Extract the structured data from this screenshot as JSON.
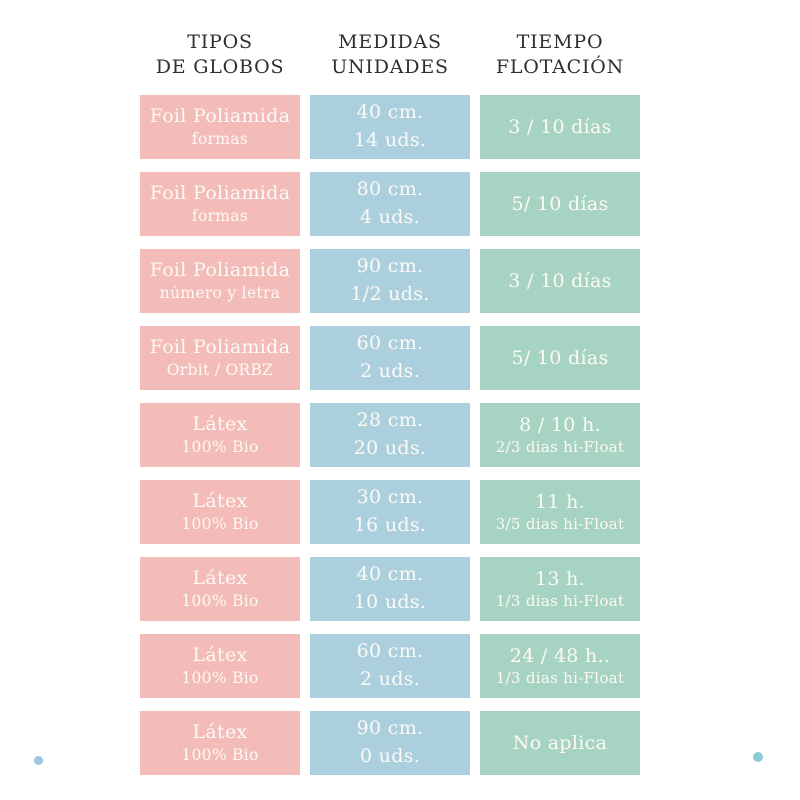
{
  "colors": {
    "pink": "#f3bcb8",
    "blue": "#accfde",
    "green": "#a7d3c3",
    "header_text": "#2f2f2f",
    "cell_text": "#fdf9f5",
    "dot_left": "#9cc7de",
    "dot_right": "#87ced6",
    "background": "#ffffff"
  },
  "chart_data": {
    "type": "table",
    "title": "",
    "columns": [
      {
        "line1": "TIPOS",
        "line2": "DE GLOBOS"
      },
      {
        "line1": "MEDIDAS",
        "line2": "UNIDADES"
      },
      {
        "line1": "TIEMPO",
        "line2": "FLOTACIÓN"
      }
    ],
    "rows": [
      {
        "tipo": "Foil Poliamida",
        "tipo_sub": "formas",
        "medida": "40 cm.",
        "unidades": "14 uds.",
        "flotacion": "3 / 10 días",
        "flotacion_sub": ""
      },
      {
        "tipo": "Foil Poliamida",
        "tipo_sub": "formas",
        "medida": "80 cm.",
        "unidades": "4 uds.",
        "flotacion": "5/ 10 días",
        "flotacion_sub": ""
      },
      {
        "tipo": "Foil Poliamida",
        "tipo_sub": "número y letra",
        "medida": "90 cm.",
        "unidades": "1/2 uds.",
        "flotacion": "3 / 10 días",
        "flotacion_sub": ""
      },
      {
        "tipo": "Foil Poliamida",
        "tipo_sub": "Orbit / ORBZ",
        "medida": "60 cm.",
        "unidades": "2 uds.",
        "flotacion": "5/ 10 días",
        "flotacion_sub": ""
      },
      {
        "tipo": "Látex",
        "tipo_sub": "100% Bio",
        "medida": "28 cm.",
        "unidades": "20 uds.",
        "flotacion": "8 / 10 h.",
        "flotacion_sub": "2/3 dias hi-Float"
      },
      {
        "tipo": "Látex",
        "tipo_sub": "100% Bio",
        "medida": "30 cm.",
        "unidades": "16 uds.",
        "flotacion": "11 h.",
        "flotacion_sub": "3/5 dias hi-Float"
      },
      {
        "tipo": "Látex",
        "tipo_sub": "100% Bio",
        "medida": "40 cm.",
        "unidades": "10 uds.",
        "flotacion": "13 h.",
        "flotacion_sub": "1/3 dias hi-Float"
      },
      {
        "tipo": "Látex",
        "tipo_sub": "100% Bio",
        "medida": "60 cm.",
        "unidades": "2 uds.",
        "flotacion": "24 / 48 h..",
        "flotacion_sub": "1/3 dias hi-Float"
      },
      {
        "tipo": "Látex",
        "tipo_sub": "100% Bio",
        "medida": "90 cm.",
        "unidades": "0 uds.",
        "flotacion": "No aplica",
        "flotacion_sub": ""
      }
    ]
  }
}
